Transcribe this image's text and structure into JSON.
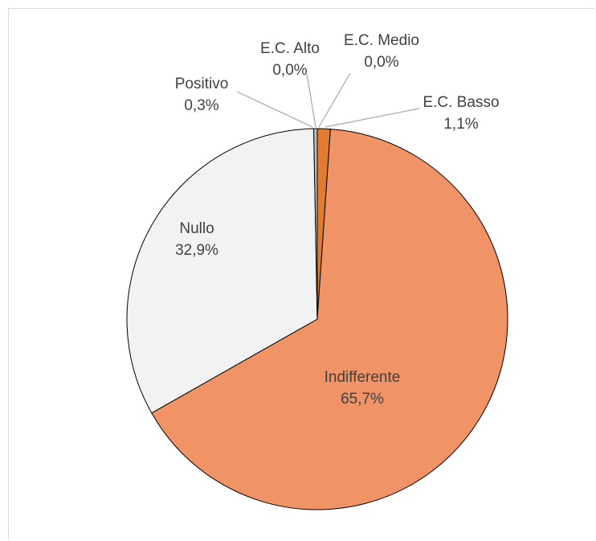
{
  "chart_data": {
    "type": "pie",
    "title": "",
    "slices": [
      {
        "label": "E.C. Alto",
        "value": 0.0,
        "value_label": "0,0%",
        "color": "#7f3a12"
      },
      {
        "label": "E.C. Medio",
        "value": 0.0,
        "value_label": "0,0%",
        "color": "#c55a11"
      },
      {
        "label": "E.C. Basso",
        "value": 1.1,
        "value_label": "1,1%",
        "color": "#e07b30"
      },
      {
        "label": "Indifferente",
        "value": 65.7,
        "value_label": "65,7%",
        "color": "#f09467"
      },
      {
        "label": "Nullo",
        "value": 32.9,
        "value_label": "32,9%",
        "color": "#f2f2f2"
      },
      {
        "label": "Positivo",
        "value": 0.3,
        "value_label": "0,3%",
        "color": "#bfbfbf"
      }
    ],
    "legend": "none"
  }
}
